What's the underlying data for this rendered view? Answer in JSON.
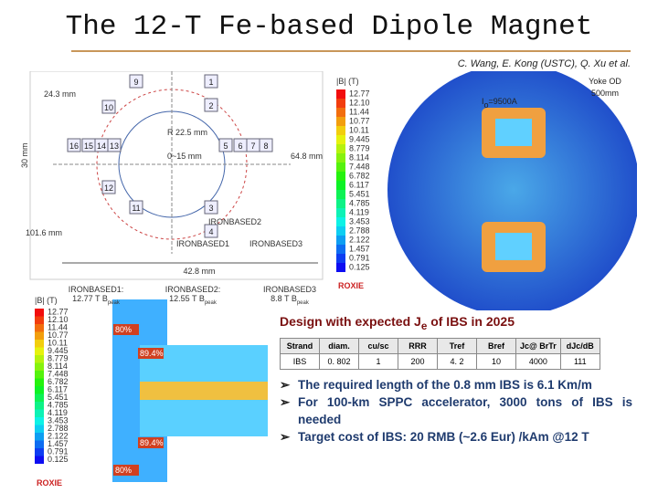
{
  "title": "The 12-T Fe-based Dipole Magnet",
  "authors": "C. Wang, E. Kong (USTC), Q. Xu et al.",
  "left_diagram": {
    "dims": [
      "24.3 mm",
      "30 mm",
      "R 22.5 mm",
      "0~15 mm",
      "64.8 mm",
      "101.6 mm",
      "42.8 mm"
    ],
    "coils": [
      "9",
      "1",
      "10",
      "2",
      "16",
      "15",
      "14",
      "13",
      "5",
      "6",
      "7",
      "8",
      "12",
      "11",
      "3",
      "4"
    ],
    "parts": [
      "IRONBASED2",
      "IRONBASED1",
      "IRONBASED3"
    ],
    "peaks": [
      {
        "name": "IRONBASED1:",
        "value": "12.77 T B",
        "sub": "peak"
      },
      {
        "name": "IRONBASED2:",
        "value": "12.55 T B",
        "sub": "peak"
      },
      {
        "name": "IRONBASED3",
        "value": "8.8 T B",
        "sub": "peak"
      }
    ]
  },
  "field_map": {
    "current": {
      "symbol": "I",
      "sub": "o",
      "value": "=9500A"
    },
    "yoke": [
      "Yoke OD",
      "500mm"
    ],
    "unit": "|B| (T)",
    "scale": [
      "12.77",
      "12.10",
      "11.44",
      "10.77",
      "10.11",
      "9.445",
      "8.779",
      "8.114",
      "7.448",
      "6.782",
      "6.117",
      "5.451",
      "4.785",
      "4.119",
      "3.453",
      "2.788",
      "2.122",
      "1.457",
      "0.791",
      "0.125"
    ],
    "logo": "ROXIE"
  },
  "coil_map": {
    "unit": "|B| (T)",
    "percentages": [
      "80%",
      "89.4%",
      "89.4%",
      "80%"
    ],
    "logo": "ROXIE"
  },
  "design": {
    "heading": "Design with expected J",
    "sub": "e",
    "tail": " of IBS in 2025"
  },
  "table": {
    "header": [
      "Strand",
      "diam.",
      "cu/sc",
      "RRR",
      "Tref",
      "Bref",
      "Jc@ BrTr",
      "dJc/dB"
    ],
    "rows": [
      [
        "IBS",
        "0. 802",
        "1",
        "200",
        "4. 2",
        "10",
        "4000",
        "111"
      ]
    ]
  },
  "bullets": [
    "The required length of the 0.8 mm IBS is 6.1 Km/m",
    "For 100-km SPPC accelerator, 3000 tons of IBS is needed",
    "Target cost of IBS: 20 RMB (~2.6 Eur) /kAm @12 T"
  ]
}
